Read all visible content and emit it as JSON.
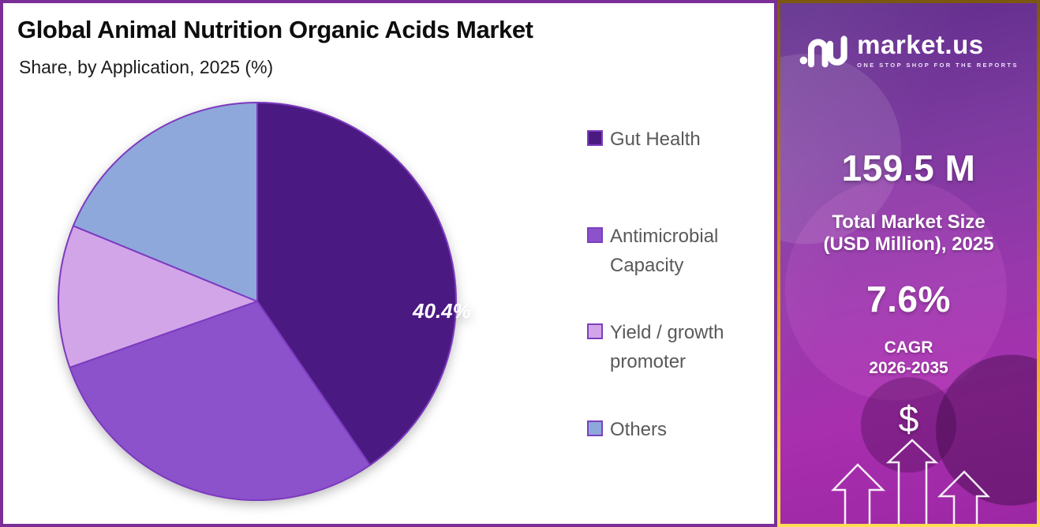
{
  "header": {
    "title": "Global Animal Nutrition Organic Acids Market",
    "subtitle": "Share, by Application, 2025 (%)"
  },
  "chart_data": {
    "type": "pie",
    "title": "Global Animal Nutrition Organic Acids Market Share, by Application, 2025 (%)",
    "categories": [
      "Gut Health",
      "Antimicrobial Capacity",
      "Yield / growth promoter",
      "Others"
    ],
    "values": [
      40.4,
      29.2,
      11.6,
      18.8
    ],
    "slice_labels": [
      "40.4%",
      "",
      "",
      ""
    ],
    "colors": [
      "#4a1a82",
      "#8c52cc",
      "#d2a5e9",
      "#8ea8dc"
    ],
    "stroke_color": "#7d3abf",
    "swatch_border": "#7d3fbf",
    "slice_label_color": "#ffffff",
    "start_angle_deg": 0,
    "direction": "clockwise",
    "legend_position": "right"
  },
  "panel": {
    "brand": {
      "name": "market.us",
      "tagline": "ONE STOP SHOP FOR THE REPORTS",
      "logo_icon": "market-us-logo"
    },
    "market_size": {
      "value": "159.5 M",
      "label_line1": "Total Market Size",
      "label_line2": "(USD Million), 2025"
    },
    "cagr": {
      "value": "7.6%",
      "label_line1": "CAGR",
      "label_line2": "2026-2035"
    },
    "dollar_symbol": "$",
    "icons": {
      "growth_arrows": "triple-up-arrows"
    },
    "colors": {
      "background_top": "#5e2c8a",
      "background_bottom": "#9c27a4",
      "border_top": "#7b570f",
      "border_bottom": "#ffdd55"
    }
  },
  "colors": {
    "page_border": "#7a2e96",
    "chart_background": "#ffffff",
    "legend_text": "#595959"
  }
}
